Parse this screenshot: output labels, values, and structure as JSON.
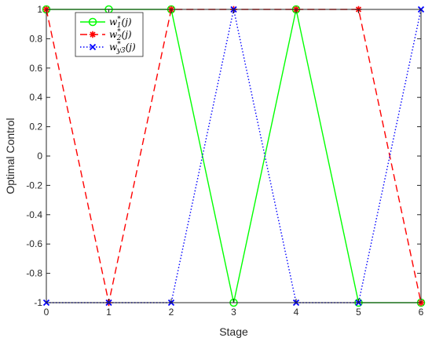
{
  "chart_data": {
    "type": "line",
    "xlabel": "Stage",
    "ylabel": "Optimal Control",
    "xlim": [
      0,
      6
    ],
    "ylim": [
      -1,
      1
    ],
    "x_ticks": [
      "0",
      "1",
      "2",
      "3",
      "4",
      "5",
      "6"
    ],
    "y_ticks": [
      "-1",
      "-0.8",
      "-0.6",
      "-0.4",
      "-0.2",
      "0",
      "0.2",
      "0.4",
      "0.6",
      "0.8",
      "1"
    ],
    "grid": false,
    "legend_position": "top-left",
    "x": [
      0,
      1,
      2,
      3,
      4,
      5,
      6
    ],
    "series": [
      {
        "key": "w1",
        "legend": {
          "base": "w",
          "sub": "1",
          "sup": "*",
          "arg": "(j)"
        },
        "values": [
          1,
          1,
          1,
          -1,
          1,
          -1,
          -1
        ],
        "color": "#00ff00",
        "line_style": "solid",
        "marker": "circle"
      },
      {
        "key": "w2",
        "legend": {
          "base": "w",
          "sub": "2",
          "sup": "*",
          "arg": "(j)"
        },
        "values": [
          1,
          -1,
          1,
          1,
          1,
          1,
          -1
        ],
        "color": "#ff0000",
        "line_style": "dashed",
        "marker": "asterisk"
      },
      {
        "key": "wy3",
        "legend": {
          "base": "w",
          "sub": "y3",
          "sup": "*",
          "arg": "(j)"
        },
        "values": [
          -1,
          -1,
          -1,
          1,
          -1,
          -1,
          1
        ],
        "color": "#0000ff",
        "line_style": "dotted",
        "marker": "x"
      }
    ]
  }
}
